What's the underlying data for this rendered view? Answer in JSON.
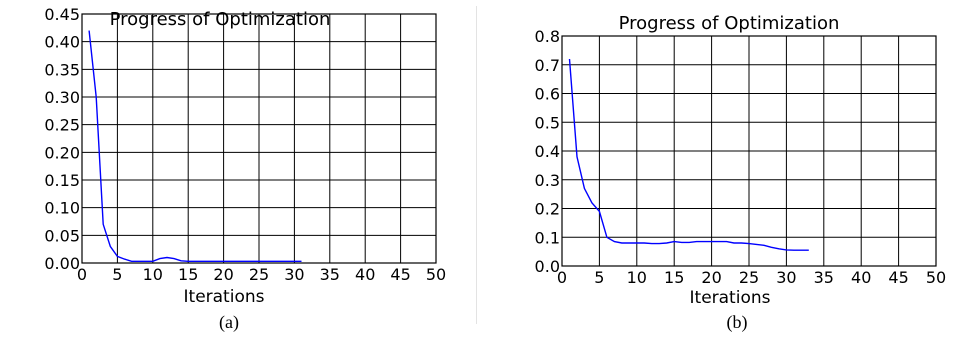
{
  "chart_data": [
    {
      "type": "line",
      "title": "Progress of Optimization",
      "xlabel": "Iterations",
      "ylabel": "",
      "caption": "(a)",
      "xlim": [
        0,
        50
      ],
      "ylim": [
        0,
        0.45
      ],
      "x_ticks": [
        "0",
        "5",
        "10",
        "15",
        "20",
        "25",
        "30",
        "35",
        "40",
        "45",
        "50"
      ],
      "y_ticks": [
        "0.00",
        "0.05",
        "0.10",
        "0.15",
        "0.20",
        "0.25",
        "0.30",
        "0.35",
        "0.40",
        "0.45"
      ],
      "grid": true,
      "line_color": "#0000ff",
      "series": [
        {
          "x": [
            1,
            2,
            3,
            4,
            5,
            6,
            7,
            8,
            9,
            10,
            11,
            12,
            13,
            14,
            15,
            16,
            17,
            18,
            19,
            20,
            21,
            22,
            23,
            24,
            25,
            26,
            27,
            28,
            29,
            30,
            31
          ],
          "values": [
            0.42,
            0.3,
            0.07,
            0.03,
            0.012,
            0.007,
            0.003,
            0.003,
            0.003,
            0.003,
            0.008,
            0.01,
            0.008,
            0.004,
            0.003,
            0.003,
            0.003,
            0.003,
            0.003,
            0.003,
            0.003,
            0.003,
            0.003,
            0.003,
            0.003,
            0.003,
            0.003,
            0.003,
            0.003,
            0.003,
            0.003
          ]
        }
      ]
    },
    {
      "type": "line",
      "title": "Progress of Optimization",
      "xlabel": "Iterations",
      "ylabel": "",
      "caption": "(b)",
      "xlim": [
        0,
        50
      ],
      "ylim": [
        0,
        0.8
      ],
      "x_ticks": [
        "0",
        "5",
        "10",
        "15",
        "20",
        "25",
        "30",
        "35",
        "40",
        "45",
        "50"
      ],
      "y_ticks": [
        "0.0",
        "0.1",
        "0.2",
        "0.3",
        "0.4",
        "0.5",
        "0.6",
        "0.7",
        "0.8"
      ],
      "grid": true,
      "line_color": "#0000ff",
      "series": [
        {
          "x": [
            1,
            2,
            3,
            4,
            5,
            6,
            7,
            8,
            9,
            10,
            11,
            12,
            13,
            14,
            15,
            16,
            17,
            18,
            19,
            20,
            21,
            22,
            23,
            24,
            25,
            26,
            27,
            28,
            29,
            30,
            31,
            32,
            33
          ],
          "values": [
            0.72,
            0.38,
            0.27,
            0.22,
            0.19,
            0.1,
            0.085,
            0.08,
            0.08,
            0.08,
            0.08,
            0.078,
            0.078,
            0.08,
            0.085,
            0.082,
            0.082,
            0.085,
            0.085,
            0.085,
            0.085,
            0.085,
            0.08,
            0.08,
            0.078,
            0.075,
            0.072,
            0.065,
            0.06,
            0.056,
            0.055,
            0.055,
            0.055
          ]
        }
      ]
    }
  ]
}
